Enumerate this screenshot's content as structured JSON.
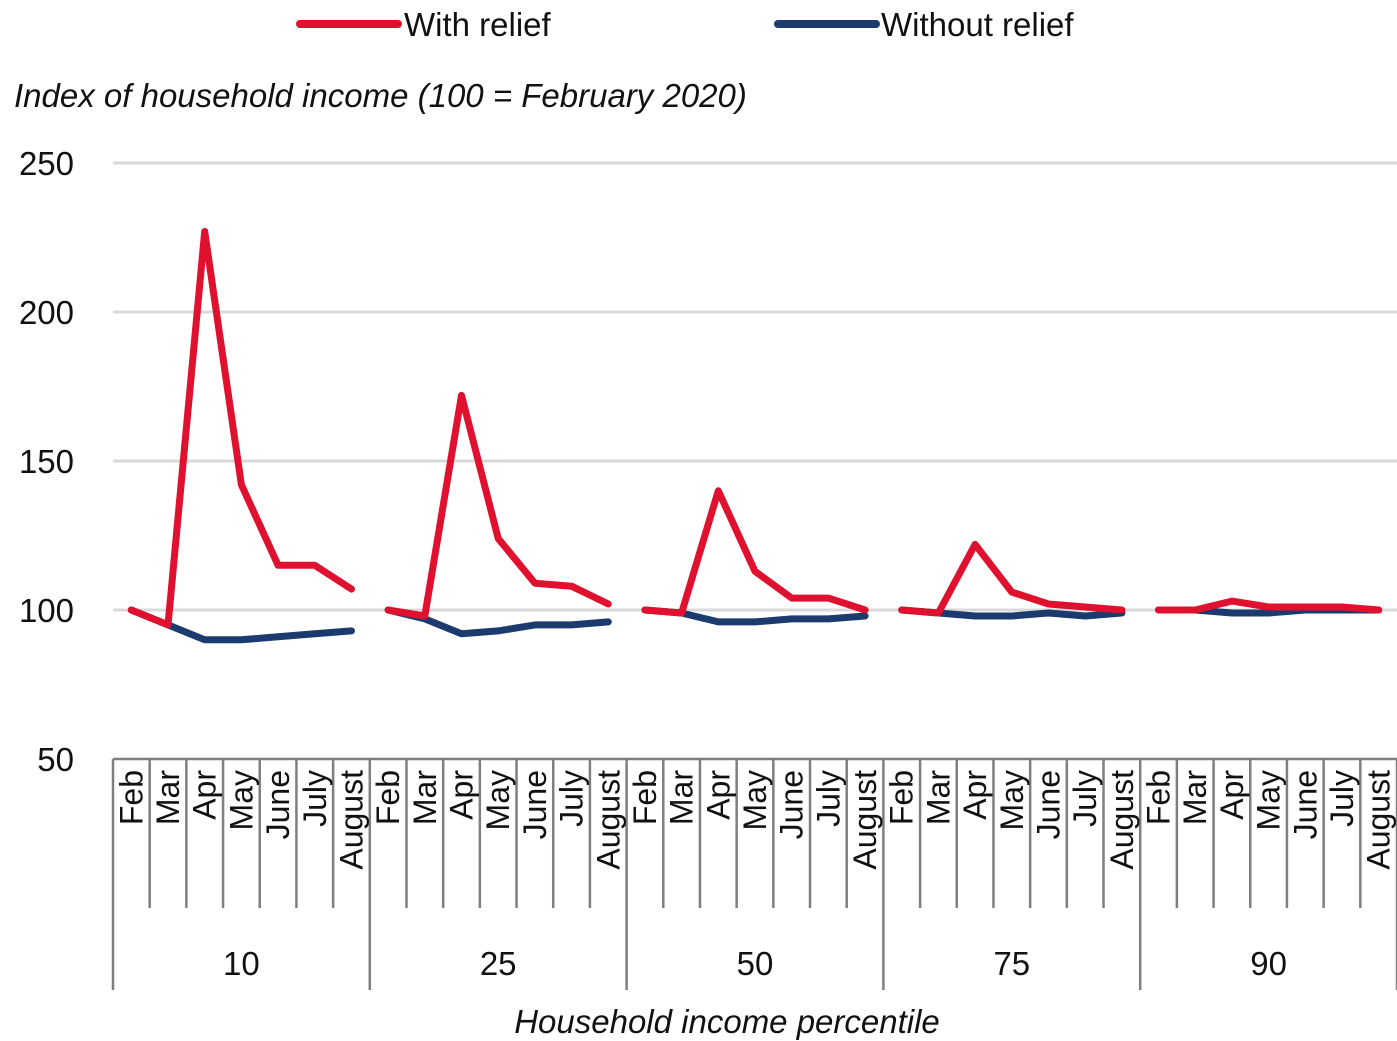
{
  "chart_data": {
    "type": "line",
    "title": "",
    "ylabel": "Index of household income (100 = February 2020)",
    "xlabel": "Household income percentile",
    "ylim": [
      50,
      250
    ],
    "yticks": [
      "250",
      "200",
      "150",
      "100",
      "50"
    ],
    "ytick_values": [
      250,
      200,
      150,
      100,
      50
    ],
    "grid": true,
    "legend_position": "top",
    "groups": [
      "10",
      "25",
      "50",
      "75",
      "90"
    ],
    "months": [
      "Feb",
      "Mar",
      "Apr",
      "May",
      "June",
      "July",
      "August"
    ],
    "series": [
      {
        "name": "With relief",
        "color": "#E0102F",
        "values": [
          [
            100,
            95,
            227,
            142,
            115,
            115,
            107
          ],
          [
            100,
            98,
            172,
            124,
            109,
            108,
            102
          ],
          [
            100,
            99,
            140,
            113,
            104,
            104,
            100
          ],
          [
            100,
            99,
            122,
            106,
            102,
            101,
            100
          ],
          [
            100,
            100,
            103,
            101,
            101,
            101,
            100
          ]
        ]
      },
      {
        "name": "Without relief",
        "color": "#1B3B6F",
        "values": [
          [
            100,
            95,
            90,
            90,
            91,
            92,
            93
          ],
          [
            100,
            97,
            92,
            93,
            95,
            95,
            96
          ],
          [
            100,
            99,
            96,
            96,
            97,
            97,
            98
          ],
          [
            100,
            99,
            98,
            98,
            99,
            98,
            99
          ],
          [
            100,
            100,
            99,
            99,
            100,
            100,
            100
          ]
        ]
      }
    ]
  }
}
